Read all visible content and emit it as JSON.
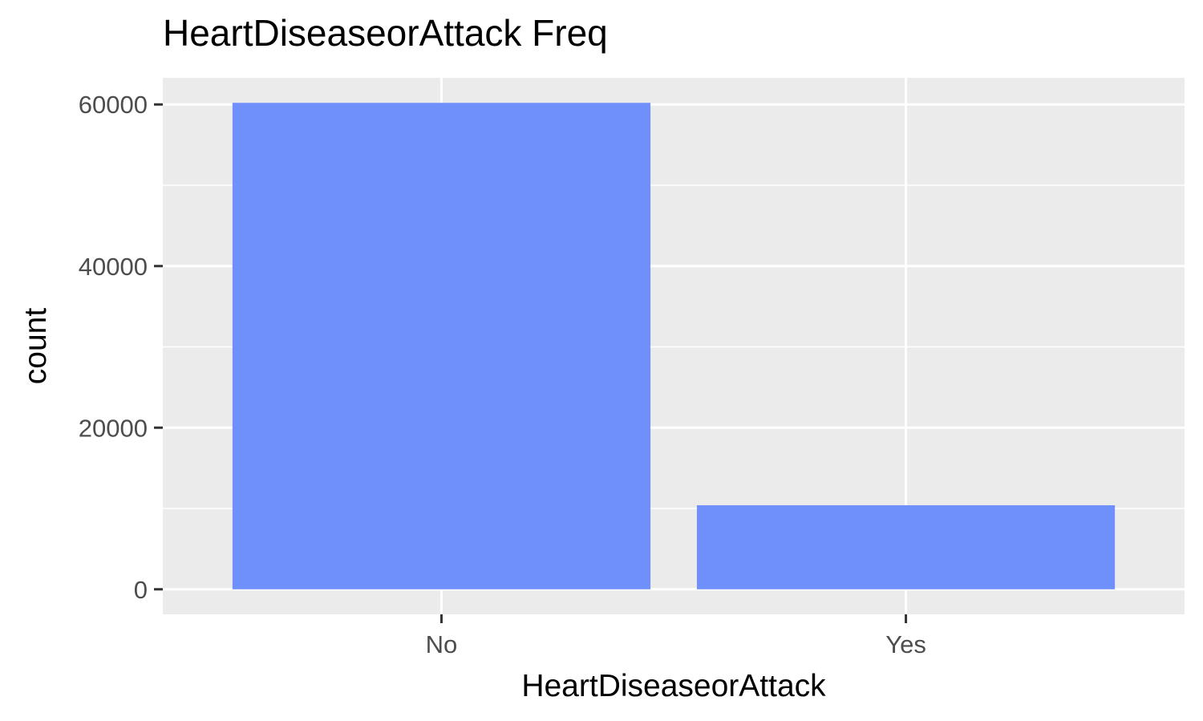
{
  "chart_data": {
    "type": "bar",
    "title": "HeartDiseaseorAttack Freq",
    "xlabel": "HeartDiseaseorAttack",
    "ylabel": "count",
    "categories": [
      "No",
      "Yes"
    ],
    "values": [
      60200,
      10400
    ],
    "ylim": [
      -3100,
      63300
    ],
    "yticks": [
      0,
      20000,
      40000,
      60000
    ],
    "ytick_labels": [
      "0",
      "20000",
      "40000",
      "60000"
    ],
    "grid": true,
    "legend": "none",
    "colors": {
      "bar": "#6f8ffa",
      "panel": "#ebebeb",
      "grid": "#ffffff"
    }
  }
}
